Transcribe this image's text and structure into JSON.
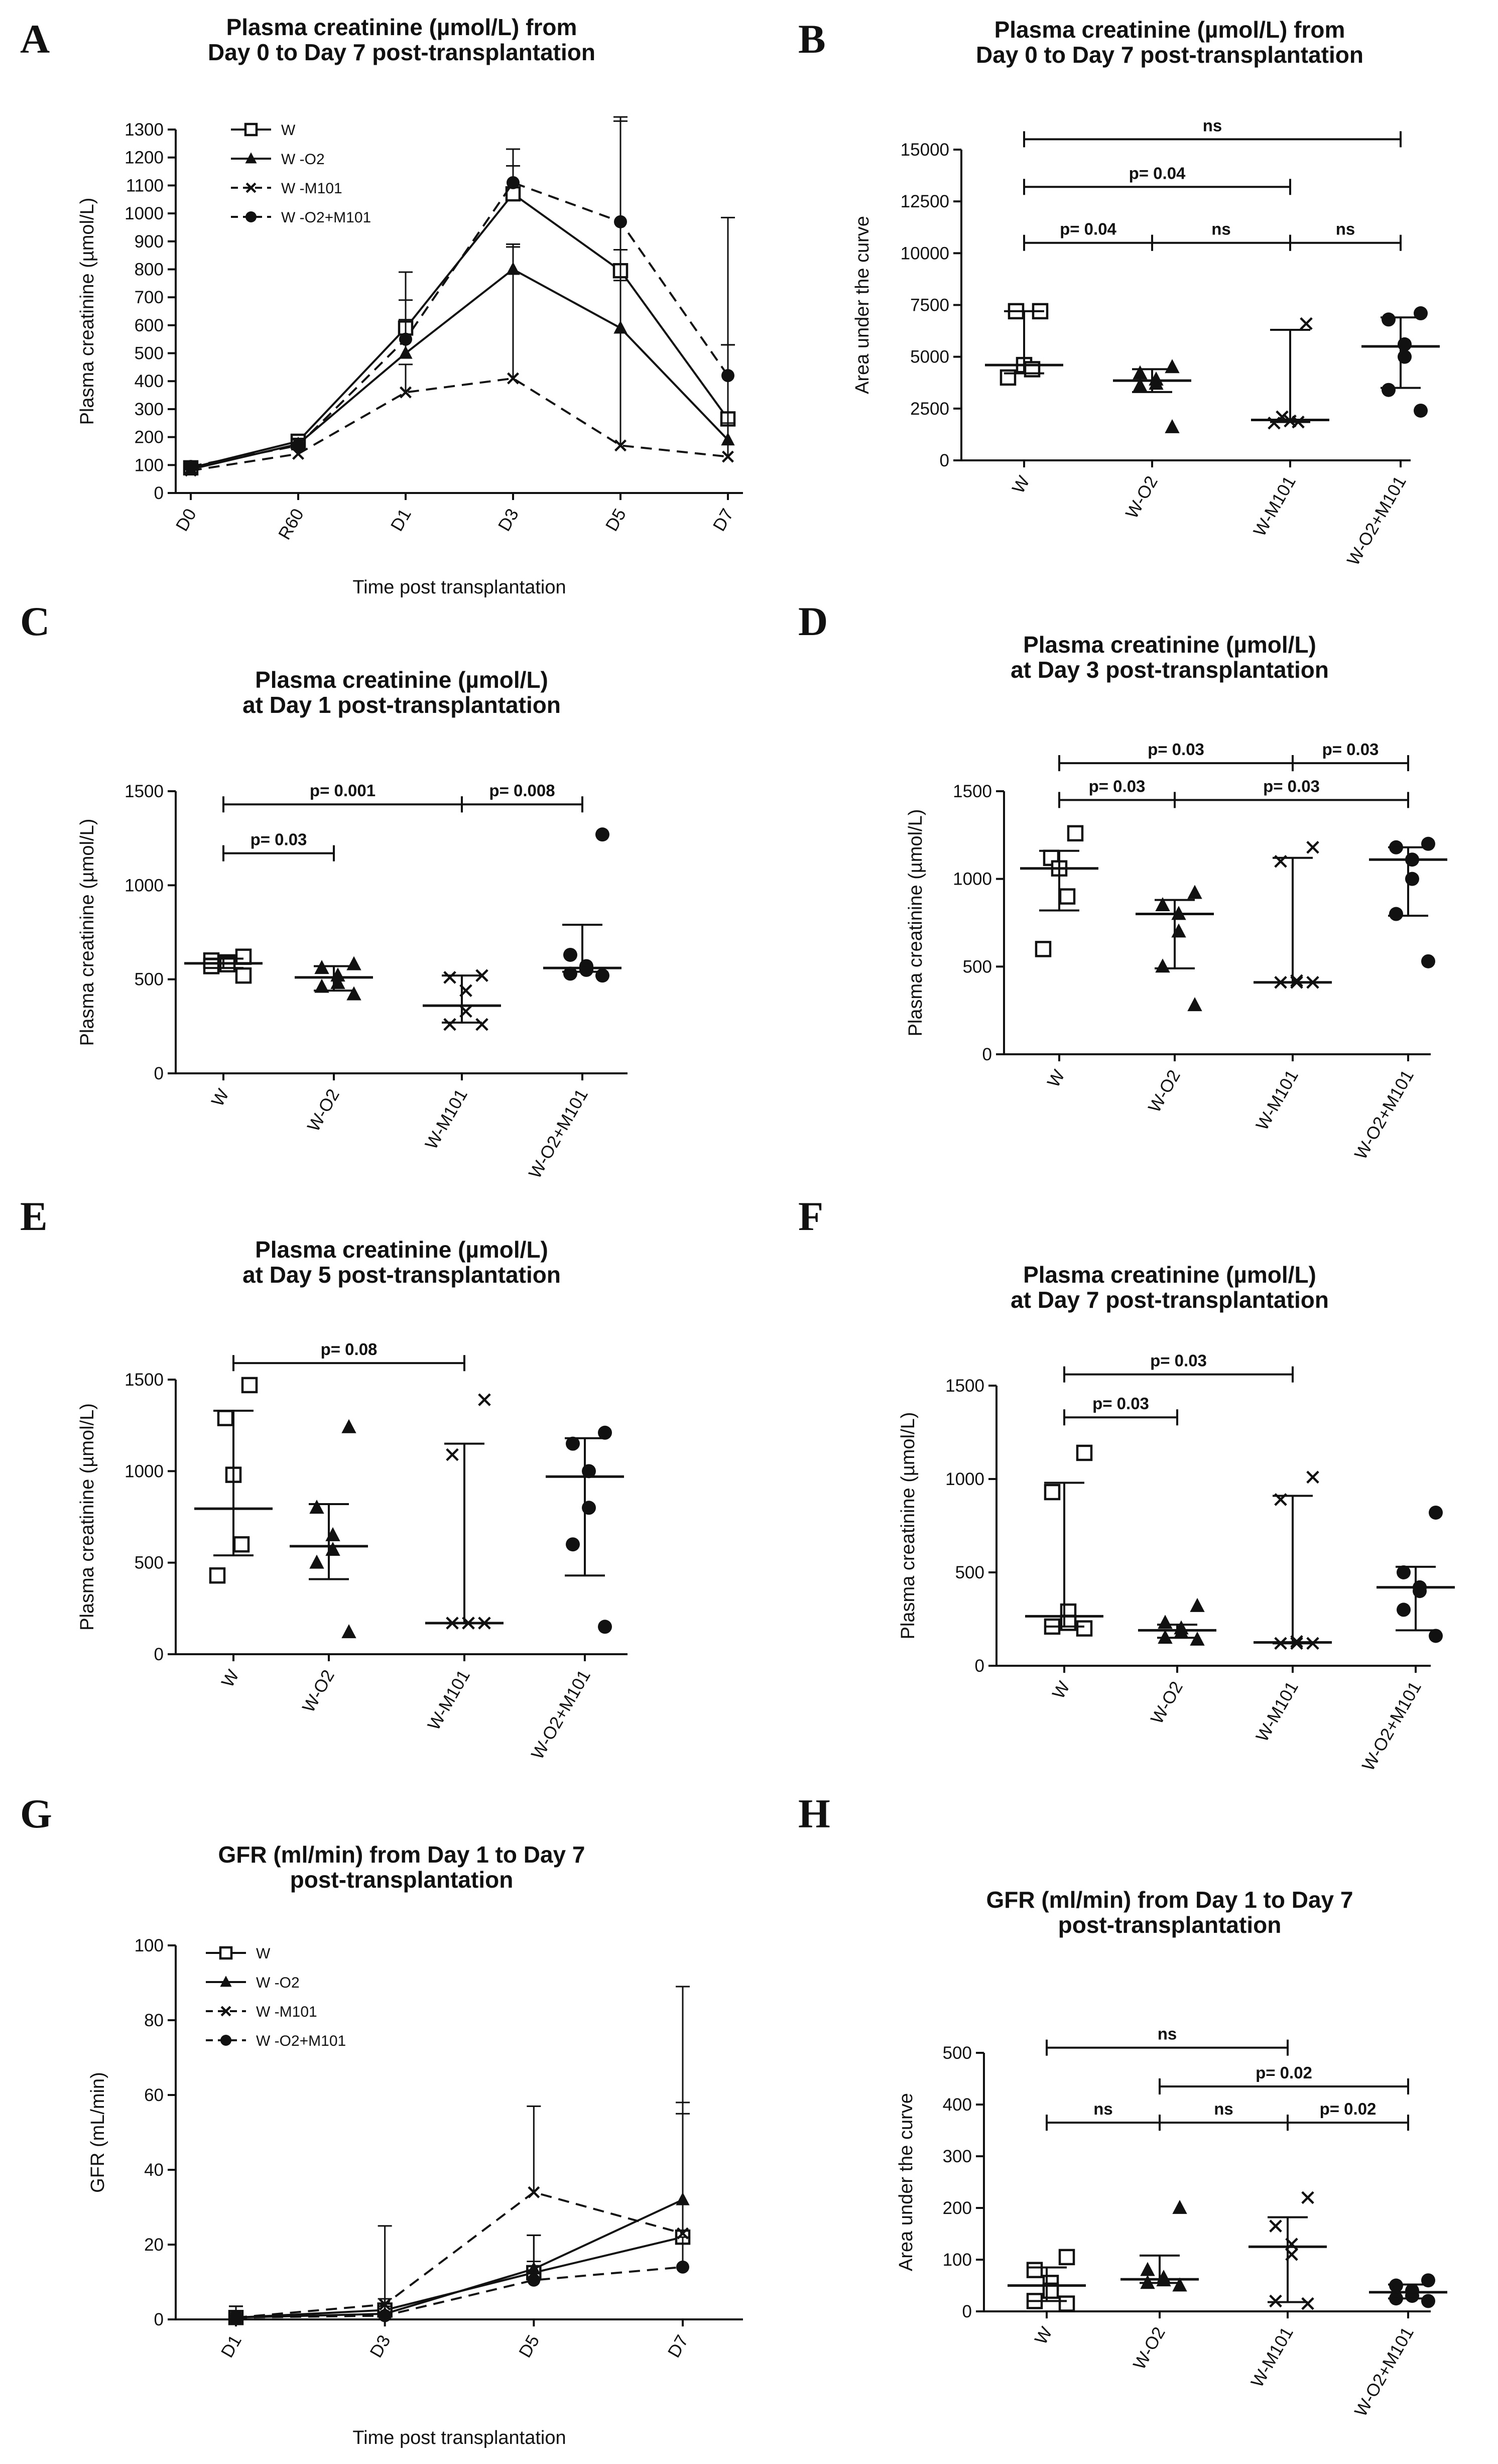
{
  "figure": {
    "background": "#ffffff",
    "ink": "#111111"
  },
  "chart_data": [
    {
      "id": "A",
      "type": "line",
      "title": [
        "Plasma creatinine (µmol/L) from",
        "Day 0 to Day 7 post-transplantation"
      ],
      "xlabel": "Time post transplantation",
      "ylabel": "Plasma creatinine (µmol/L)",
      "categories": [
        "D0",
        "R60",
        "D1",
        "D3",
        "D5",
        "D7"
      ],
      "ylim": [
        0,
        1300
      ],
      "yticks": [
        0,
        100,
        200,
        300,
        400,
        500,
        600,
        700,
        800,
        900,
        1000,
        1100,
        1200,
        1300
      ],
      "series": [
        {
          "name": "W",
          "marker": "open-square",
          "dash": "solid",
          "values": [
            90,
            185,
            590,
            1070,
            795,
            265
          ],
          "error": [
            12,
            20,
            200,
            160,
            550,
            720
          ]
        },
        {
          "name": "W -O2",
          "marker": "triangle",
          "dash": "solid",
          "values": [
            85,
            175,
            500,
            800,
            590,
            190
          ],
          "error": [
            12,
            20,
            120,
            90,
            170,
            60
          ]
        },
        {
          "name": "W -M101",
          "marker": "x",
          "dash": "dash",
          "values": [
            80,
            140,
            360,
            410,
            170,
            130
          ],
          "error": [
            10,
            15,
            100,
            470,
            700,
            400
          ]
        },
        {
          "name": "W -O2+M101",
          "marker": "dot",
          "dash": "dash",
          "values": [
            95,
            170,
            550,
            1110,
            970,
            420
          ],
          "error": [
            12,
            20,
            140,
            60,
            360,
            110
          ]
        }
      ]
    },
    {
      "id": "B",
      "type": "scatter",
      "title": [
        "Plasma creatinine (µmol/L) from",
        "Day 0 to Day 7 post-transplantation"
      ],
      "ylabel": "Area under the curve",
      "categories": [
        "W",
        "W-O2",
        "W-M101",
        "W-O2+M101"
      ],
      "ylim": [
        0,
        15000
      ],
      "yticks": [
        0,
        2500,
        5000,
        7500,
        10000,
        12500,
        15000
      ],
      "groups": [
        {
          "name": "W",
          "marker": "open-square",
          "points": [
            7200,
            7200,
            4600,
            4400,
            4000
          ],
          "center": 4600,
          "low": 4200,
          "high": 7200
        },
        {
          "name": "W-O2",
          "marker": "triangle",
          "points": [
            4500,
            4200,
            3900,
            3700,
            3600,
            1600
          ],
          "center": 3850,
          "low": 3300,
          "high": 4400
        },
        {
          "name": "W-M101",
          "marker": "x",
          "points": [
            6600,
            2100,
            1900,
            1850,
            1800
          ],
          "center": 1950,
          "low": 1850,
          "high": 6300
        },
        {
          "name": "W-O2+M101",
          "marker": "dot",
          "points": [
            7100,
            6800,
            5600,
            5000,
            3400,
            2400
          ],
          "center": 5500,
          "low": 3500,
          "high": 6900
        }
      ],
      "comparisons": [
        {
          "a": 0,
          "b": 3,
          "label": "ns",
          "y": 15500
        },
        {
          "a": 0,
          "b": 2,
          "label": "p= 0.04",
          "y": 13200
        },
        {
          "a": 0,
          "b": 1,
          "label": "p= 0.04",
          "y": 10500
        },
        {
          "a": 1,
          "b": 2,
          "label": "ns",
          "y": 10500
        },
        {
          "a": 2,
          "b": 3,
          "label": "ns",
          "y": 10500
        }
      ]
    },
    {
      "id": "C",
      "type": "scatter",
      "title": [
        "Plasma creatinine (µmol/L)",
        "at Day 1 post-transplantation"
      ],
      "ylabel": "Plasma creatinine (µmol/L)",
      "categories": [
        "W",
        "W-O2",
        "W-M101",
        "W-O2+M101"
      ],
      "ylim": [
        0,
        1500
      ],
      "yticks": [
        0,
        500,
        1000,
        1500
      ],
      "groups": [
        {
          "name": "W",
          "marker": "open-square",
          "points": [
            620,
            600,
            590,
            580,
            570,
            520
          ],
          "center": 585,
          "low": 560,
          "high": 610
        },
        {
          "name": "W-O2",
          "marker": "triangle",
          "points": [
            580,
            560,
            520,
            480,
            460,
            420
          ],
          "center": 510,
          "low": 440,
          "high": 570
        },
        {
          "name": "W-M101",
          "marker": "x",
          "points": [
            520,
            510,
            440,
            330,
            260,
            260
          ],
          "center": 360,
          "low": 270,
          "high": 520
        },
        {
          "name": "W-O2+M101",
          "marker": "dot",
          "points": [
            1270,
            630,
            570,
            550,
            530,
            520
          ],
          "center": 560,
          "low": 540,
          "high": 790
        }
      ],
      "comparisons": [
        {
          "a": 0,
          "b": 2,
          "label": "p= 0.001",
          "y": 1430
        },
        {
          "a": 2,
          "b": 3,
          "label": "p= 0.008",
          "y": 1430
        },
        {
          "a": 0,
          "b": 1,
          "label": "p= 0.03",
          "y": 1170
        }
      ]
    },
    {
      "id": "D",
      "type": "scatter",
      "title": [
        "Plasma creatinine (µmol/L)",
        "at Day 3 post-transplantation"
      ],
      "ylabel": "Plasma creatinine (µmol/L)",
      "categories": [
        "W",
        "W-O2",
        "W-M101",
        "W-O2+M101"
      ],
      "ylim": [
        0,
        1500
      ],
      "yticks": [
        0,
        500,
        1000,
        1500
      ],
      "groups": [
        {
          "name": "W",
          "marker": "open-square",
          "points": [
            1260,
            1120,
            1060,
            900,
            600
          ],
          "center": 1060,
          "low": 820,
          "high": 1160
        },
        {
          "name": "W-O2",
          "marker": "triangle",
          "points": [
            920,
            850,
            800,
            700,
            500,
            280
          ],
          "center": 800,
          "low": 490,
          "high": 880
        },
        {
          "name": "W-M101",
          "marker": "x",
          "points": [
            1180,
            1100,
            420,
            410,
            410,
            410
          ],
          "center": 410,
          "low": 410,
          "high": 1120
        },
        {
          "name": "W-O2+M101",
          "marker": "dot",
          "points": [
            1200,
            1180,
            1110,
            1000,
            800,
            530
          ],
          "center": 1110,
          "low": 790,
          "high": 1180
        }
      ],
      "comparisons": [
        {
          "a": 0,
          "b": 2,
          "label": "p= 0.03",
          "y": 1660
        },
        {
          "a": 2,
          "b": 3,
          "label": "p= 0.03",
          "y": 1660
        },
        {
          "a": 0,
          "b": 1,
          "label": "p= 0.03",
          "y": 1450
        },
        {
          "a": 1,
          "b": 3,
          "label": "p= 0.03",
          "y": 1450
        }
      ]
    },
    {
      "id": "E",
      "type": "scatter",
      "title": [
        "Plasma creatinine (µmol/L)",
        "at Day 5 post-transplantation"
      ],
      "ylabel": "Plasma creatinine (µmol/L)",
      "categories": [
        "W",
        "W-O2",
        "W-M101",
        "W-O2+M101"
      ],
      "ylim": [
        0,
        1500
      ],
      "yticks": [
        0,
        500,
        1000,
        1500
      ],
      "groups": [
        {
          "name": "W",
          "marker": "open-square",
          "points": [
            1470,
            1290,
            980,
            600,
            430
          ],
          "center": 795,
          "low": 540,
          "high": 1330
        },
        {
          "name": "W-O2",
          "marker": "triangle",
          "points": [
            1240,
            800,
            650,
            570,
            500,
            120
          ],
          "center": 590,
          "low": 410,
          "high": 820
        },
        {
          "name": "W-M101",
          "marker": "x",
          "points": [
            1390,
            1090,
            170,
            170,
            170,
            170
          ],
          "center": 170,
          "low": 170,
          "high": 1150
        },
        {
          "name": "W-O2+M101",
          "marker": "dot",
          "points": [
            1210,
            1150,
            1000,
            800,
            600,
            150
          ],
          "center": 970,
          "low": 430,
          "high": 1180
        }
      ],
      "comparisons": [
        {
          "a": 0,
          "b": 2,
          "label": "p= 0.08",
          "y": 1590
        }
      ]
    },
    {
      "id": "F",
      "type": "scatter",
      "title": [
        "Plasma creatinine (µmol/L)",
        "at Day 7 post-transplantation"
      ],
      "ylabel": "Plasma creatinine (µmol/L)",
      "categories": [
        "W",
        "W-O2",
        "W-M101",
        "W-O2+M101"
      ],
      "ylim": [
        0,
        1500
      ],
      "yticks": [
        0,
        500,
        1000,
        1500
      ],
      "groups": [
        {
          "name": "W",
          "marker": "open-square",
          "points": [
            1140,
            930,
            290,
            230,
            210,
            200
          ],
          "center": 265,
          "low": 210,
          "high": 980
        },
        {
          "name": "W-O2",
          "marker": "triangle",
          "points": [
            320,
            230,
            200,
            180,
            150,
            140
          ],
          "center": 190,
          "low": 150,
          "high": 220
        },
        {
          "name": "W-M101",
          "marker": "x",
          "points": [
            1010,
            890,
            130,
            120,
            120,
            120
          ],
          "center": 125,
          "low": 120,
          "high": 910
        },
        {
          "name": "W-O2+M101",
          "marker": "dot",
          "points": [
            820,
            500,
            420,
            400,
            300,
            160
          ],
          "center": 420,
          "low": 190,
          "high": 530
        }
      ],
      "comparisons": [
        {
          "a": 0,
          "b": 2,
          "label": "p= 0.03",
          "y": 1560
        },
        {
          "a": 0,
          "b": 1,
          "label": "p= 0.03",
          "y": 1330
        }
      ]
    },
    {
      "id": "G",
      "type": "line",
      "title": [
        "GFR (ml/min) from Day 1 to Day 7",
        "post-transplantation"
      ],
      "xlabel": "Time post transplantation",
      "ylabel": "GFR (mL/min)",
      "categories": [
        "D1",
        "D3",
        "D5",
        "D7"
      ],
      "ylim": [
        0,
        100
      ],
      "yticks": [
        0,
        20,
        40,
        60,
        80,
        100
      ],
      "series": [
        {
          "name": "W",
          "marker": "open-square",
          "dash": "solid",
          "values": [
            0.5,
            2.5,
            12.5,
            22
          ],
          "error": [
            3,
            3,
            10,
            33
          ]
        },
        {
          "name": "W -O2",
          "marker": "triangle",
          "dash": "solid",
          "values": [
            0.5,
            1.5,
            13.5,
            32
          ],
          "error": [
            3,
            2,
            9,
            57
          ]
        },
        {
          "name": "W -M101",
          "marker": "x",
          "dash": "dash",
          "values": [
            0.5,
            4,
            34,
            23
          ],
          "error": [
            3,
            21,
            23,
            35
          ]
        },
        {
          "name": "W -O2+M101",
          "marker": "dot",
          "dash": "dash",
          "values": [
            0.5,
            1,
            10.5,
            14
          ],
          "error": [
            3,
            1,
            5,
            8
          ]
        }
      ]
    },
    {
      "id": "H",
      "type": "scatter",
      "title": [
        "GFR (ml/min) from Day 1 to Day 7",
        "post-transplantation"
      ],
      "ylabel": "Area under the curve",
      "categories": [
        "W",
        "W-O2",
        "W-M101",
        "W-O2+M101"
      ],
      "ylim": [
        0,
        500
      ],
      "yticks": [
        0,
        100,
        200,
        300,
        400,
        500
      ],
      "groups": [
        {
          "name": "W",
          "marker": "open-square",
          "points": [
            105,
            80,
            55,
            40,
            20,
            15
          ],
          "center": 50,
          "low": 20,
          "high": 85
        },
        {
          "name": "W-O2",
          "marker": "triangle",
          "points": [
            200,
            80,
            65,
            60,
            55,
            50
          ],
          "center": 62,
          "low": 55,
          "high": 108
        },
        {
          "name": "W-M101",
          "marker": "x",
          "points": [
            220,
            165,
            130,
            110,
            20,
            15
          ],
          "center": 125,
          "low": 18,
          "high": 182
        },
        {
          "name": "W-O2+M101",
          "marker": "dot",
          "points": [
            60,
            50,
            40,
            30,
            25,
            20
          ],
          "center": 37,
          "low": 25,
          "high": 52
        }
      ],
      "comparisons": [
        {
          "a": 0,
          "b": 2,
          "label": "ns",
          "y": 510
        },
        {
          "a": 1,
          "b": 3,
          "label": "p= 0.02",
          "y": 435
        },
        {
          "a": 0,
          "b": 1,
          "label": "ns",
          "y": 365
        },
        {
          "a": 1,
          "b": 2,
          "label": "ns",
          "y": 365
        },
        {
          "a": 2,
          "b": 3,
          "label": "p= 0.02",
          "y": 365
        }
      ]
    }
  ]
}
